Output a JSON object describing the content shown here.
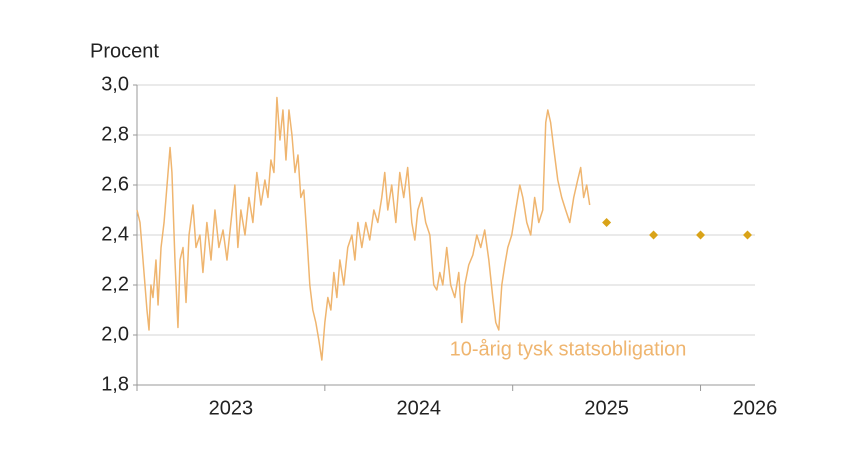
{
  "chart_data": {
    "type": "line",
    "y_label": "Procent",
    "xlim": [
      2023,
      2026.29
    ],
    "xticks": [
      2023,
      2024,
      2025,
      2026
    ],
    "ylim": [
      1.8,
      3.0
    ],
    "yticks": [
      {
        "value": 1.8,
        "label": "1,8"
      },
      {
        "value": 2.0,
        "label": "2,0"
      },
      {
        "value": 2.2,
        "label": "2,2"
      },
      {
        "value": 2.4,
        "label": "2,4"
      },
      {
        "value": 2.6,
        "label": "2,6"
      },
      {
        "value": 2.8,
        "label": "2,8"
      },
      {
        "value": 3.0,
        "label": "3,0"
      }
    ],
    "grid": true,
    "series": [
      {
        "name": "10-årig tysk statsobligation",
        "color": "#efb56f",
        "x": [
          2023.0,
          2023.016,
          2023.032,
          2023.053,
          2023.064,
          2023.074,
          2023.085,
          2023.101,
          2023.112,
          2023.128,
          2023.144,
          2023.16,
          2023.176,
          2023.186,
          2023.202,
          2023.218,
          2023.229,
          2023.245,
          2023.261,
          2023.277,
          2023.298,
          2023.314,
          2023.335,
          2023.351,
          2023.372,
          2023.394,
          2023.415,
          2023.436,
          2023.458,
          2023.479,
          2023.5,
          2023.521,
          2023.537,
          2023.553,
          2023.575,
          2023.596,
          2023.617,
          2023.638,
          2023.66,
          2023.681,
          2023.697,
          2023.713,
          2023.729,
          2023.745,
          2023.761,
          2023.777,
          2023.793,
          2023.809,
          2023.825,
          2023.841,
          2023.857,
          2023.872,
          2023.888,
          2023.904,
          2023.92,
          2023.936,
          2023.952,
          2023.968,
          2023.984,
          2024.0,
          2024.016,
          2024.032,
          2024.048,
          2024.064,
          2024.08,
          2024.101,
          2024.122,
          2024.144,
          2024.16,
          2024.176,
          2024.197,
          2024.218,
          2024.239,
          2024.261,
          2024.282,
          2024.303,
          2024.319,
          2024.335,
          2024.356,
          2024.378,
          2024.399,
          2024.42,
          2024.441,
          2024.463,
          2024.479,
          2024.495,
          2024.516,
          2024.537,
          2024.559,
          2024.58,
          2024.596,
          2024.612,
          2024.628,
          2024.649,
          2024.67,
          2024.692,
          2024.713,
          2024.729,
          2024.745,
          2024.766,
          2024.788,
          2024.809,
          2024.83,
          2024.851,
          2024.873,
          2024.894,
          2024.91,
          2024.926,
          2024.942,
          2024.958,
          2024.974,
          2024.995,
          2025.016,
          2025.038,
          2025.054,
          2025.075,
          2025.096,
          2025.117,
          2025.139,
          2025.16,
          2025.176,
          2025.187,
          2025.202,
          2025.218,
          2025.24,
          2025.261,
          2025.282,
          2025.304,
          2025.325,
          2025.346,
          2025.362,
          2025.378,
          2025.394,
          2025.41
        ],
        "values": [
          2.5,
          2.45,
          2.3,
          2.1,
          2.02,
          2.2,
          2.15,
          2.3,
          2.12,
          2.35,
          2.45,
          2.6,
          2.75,
          2.65,
          2.3,
          2.03,
          2.3,
          2.35,
          2.13,
          2.4,
          2.52,
          2.35,
          2.4,
          2.25,
          2.45,
          2.3,
          2.5,
          2.35,
          2.42,
          2.3,
          2.45,
          2.6,
          2.35,
          2.5,
          2.4,
          2.55,
          2.45,
          2.65,
          2.52,
          2.62,
          2.55,
          2.7,
          2.65,
          2.95,
          2.78,
          2.9,
          2.7,
          2.9,
          2.8,
          2.65,
          2.72,
          2.55,
          2.58,
          2.4,
          2.2,
          2.1,
          2.05,
          1.98,
          1.9,
          2.05,
          2.15,
          2.1,
          2.25,
          2.15,
          2.3,
          2.2,
          2.35,
          2.4,
          2.3,
          2.45,
          2.35,
          2.45,
          2.38,
          2.5,
          2.45,
          2.55,
          2.65,
          2.5,
          2.6,
          2.45,
          2.65,
          2.55,
          2.67,
          2.45,
          2.38,
          2.5,
          2.55,
          2.45,
          2.4,
          2.2,
          2.18,
          2.25,
          2.2,
          2.35,
          2.2,
          2.15,
          2.25,
          2.05,
          2.2,
          2.28,
          2.32,
          2.4,
          2.35,
          2.42,
          2.3,
          2.15,
          2.05,
          2.02,
          2.2,
          2.28,
          2.35,
          2.4,
          2.5,
          2.6,
          2.55,
          2.45,
          2.4,
          2.55,
          2.45,
          2.5,
          2.85,
          2.9,
          2.85,
          2.75,
          2.62,
          2.55,
          2.5,
          2.45,
          2.55,
          2.62,
          2.67,
          2.55,
          2.6,
          2.52
        ]
      },
      {
        "color": "#d9a318",
        "marker": "diamond",
        "x": [
          2025.5,
          2025.75,
          2026.0,
          2026.25
        ],
        "values": [
          2.45,
          2.4,
          2.4,
          2.4
        ]
      }
    ]
  }
}
